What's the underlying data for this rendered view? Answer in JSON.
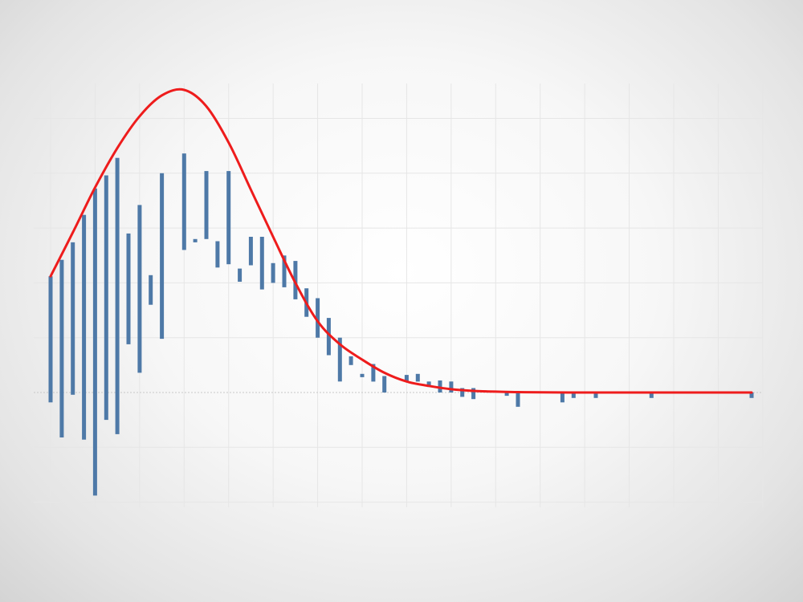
{
  "chart_data": {
    "type": "bar",
    "title": "",
    "xlabel": "",
    "ylabel": "",
    "grid": true,
    "legend": "none",
    "xlim": [
      0,
      16
    ],
    "ylim": [
      -1.0,
      2.75
    ],
    "colors": {
      "bars": "#4e79a7",
      "curve": "#ee1c1c",
      "grid": "#e6e6e6"
    },
    "series": [
      {
        "type": "bar",
        "x": [
          0.0,
          0.25,
          0.5,
          0.75,
          1.0,
          1.25,
          1.5,
          1.75,
          2.0,
          2.25,
          2.5,
          2.75,
          3.0,
          3.25,
          3.5,
          3.75,
          4.0,
          4.25,
          4.5,
          4.75,
          5.0,
          5.25,
          5.5,
          5.75,
          6.0,
          6.25,
          6.5,
          6.75,
          7.0,
          7.25,
          7.5,
          7.75,
          8.0,
          8.25,
          8.5,
          8.75,
          9.0,
          9.25,
          9.5,
          9.75,
          10.0,
          10.25,
          10.5,
          10.75,
          11.0,
          11.25,
          11.5,
          11.75,
          12.0,
          12.25,
          12.5,
          12.75,
          13.0,
          13.25,
          13.5,
          13.75,
          14.0,
          14.25,
          14.5,
          14.75,
          15.0,
          15.25,
          15.5,
          15.75
        ],
        "top": [
          1.06,
          1.21,
          1.37,
          1.62,
          1.86,
          1.98,
          2.14,
          1.45,
          1.71,
          0.8,
          2.0,
          1.39,
          2.18,
          1.37,
          2.02,
          1.38,
          2.02,
          1.13,
          1.16,
          1.42,
          1.0,
          1.25,
          1.2,
          0.95,
          0.86,
          0.68,
          0.5,
          0.33,
          0.17,
          0.26,
          0.15,
          0.1,
          0.16,
          0.17,
          0.1,
          0.11,
          0.1,
          0.04,
          0.04,
          0.02,
          0.01,
          0.005,
          0.0,
          0.0,
          0.0,
          0.0,
          0.0,
          0.0,
          0.0,
          0.0,
          0.0,
          0.0,
          0.0,
          0.0,
          0.0,
          0.0,
          0.0,
          0.0,
          0.0,
          0.0,
          0.0,
          0.0,
          0.0,
          0.0
        ],
        "bottom": [
          -0.09,
          -0.41,
          -0.02,
          -0.43,
          -0.94,
          -0.25,
          -0.38,
          0.44,
          0.18,
          1.07,
          0.49,
          1.4,
          1.3,
          1.4,
          1.4,
          1.14,
          1.17,
          1.01,
          1.42,
          0.94,
          1.18,
          0.96,
          0.85,
          0.69,
          0.5,
          0.34,
          0.1,
          0.25,
          0.14,
          0.1,
          0.0,
          0.09,
          0.1,
          0.1,
          0.05,
          0.0,
          0.0,
          -0.04,
          -0.06,
          0.0,
          0.0,
          -0.03,
          -0.13,
          0.0,
          0.0,
          0.0,
          -0.09,
          -0.05,
          0.0,
          -0.05,
          0.0,
          0.0,
          0.0,
          0.0,
          -0.05,
          0.0,
          0.0,
          0.0,
          0.0,
          0.0,
          0.0,
          0.0,
          0.0,
          -0.05
        ]
      },
      {
        "type": "line",
        "x": [
          0.0,
          0.5,
          1.0,
          1.5,
          2.0,
          2.5,
          3.0,
          3.5,
          4.0,
          4.5,
          5.0,
          5.5,
          6.0,
          6.5,
          7.0,
          7.5,
          8.0,
          8.5,
          9.0,
          9.5,
          10.0,
          10.5,
          11.0,
          12.0,
          13.0,
          14.0,
          15.0,
          15.75
        ],
        "y": [
          1.06,
          1.46,
          1.87,
          2.23,
          2.52,
          2.71,
          2.76,
          2.61,
          2.28,
          1.85,
          1.42,
          1.0,
          0.65,
          0.44,
          0.3,
          0.18,
          0.1,
          0.06,
          0.03,
          0.015,
          0.008,
          0.004,
          0.002,
          0.0,
          0.0,
          0.0,
          0.0,
          0.0
        ]
      }
    ]
  }
}
